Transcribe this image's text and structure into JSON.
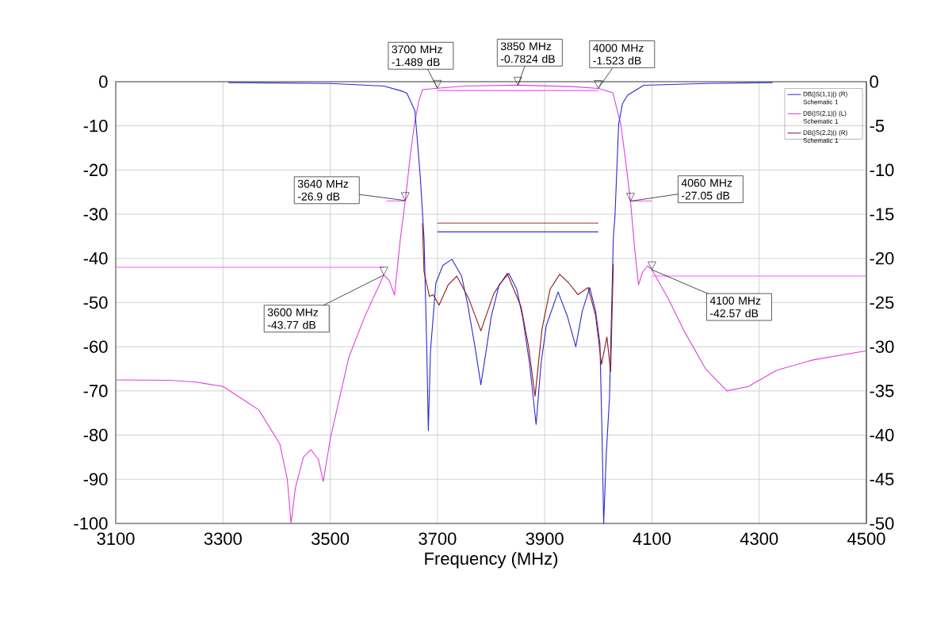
{
  "chart_data": {
    "type": "line",
    "xlabel": "Frequency (MHz)",
    "xlim": [
      3100,
      4500
    ],
    "xticks": [
      3100,
      3300,
      3500,
      3700,
      3900,
      4100,
      4300,
      4500
    ],
    "ylim": [
      -100,
      0
    ],
    "yticks": [
      0,
      -10,
      -20,
      -30,
      -40,
      -50,
      -60,
      -70,
      -80,
      -90,
      -100
    ],
    "y2lim": [
      -50,
      0
    ],
    "y2ticks": [
      0,
      -5,
      -10,
      -15,
      -20,
      -25,
      -30,
      -35,
      -40,
      -45,
      -50
    ],
    "grid": true,
    "legend": "top right",
    "series": [
      {
        "name": "DB(|S(1,1)|) (R) Schematic 1",
        "color": "#2a2ad0",
        "axis": "y2",
        "x": [
          3310,
          3500,
          3600,
          3630,
          3643,
          3658,
          3668,
          3675,
          3680,
          3683,
          3687,
          3697,
          3710,
          3727,
          3745,
          3756,
          3770,
          3781,
          3792,
          3800,
          3815,
          3833,
          3848,
          3859,
          3872,
          3884,
          3893,
          3903,
          3925,
          3942,
          3958,
          3970,
          3984,
          3995,
          4003,
          4007,
          4010,
          4015,
          4021,
          4028,
          4031,
          4038,
          4045,
          4055,
          4085,
          4200,
          4325
        ],
        "values": [
          -0.1,
          -0.2,
          -0.5,
          -1.0,
          -1.3,
          -3.3,
          -10.8,
          -17.7,
          -30,
          -39.5,
          -30.5,
          -22.8,
          -20.8,
          -20.1,
          -22,
          -25.1,
          -30,
          -34.3,
          -30,
          -26.7,
          -23,
          -21.7,
          -23.5,
          -26.7,
          -32,
          -38.8,
          -32,
          -27.6,
          -23.8,
          -26.5,
          -30.0,
          -26,
          -23.3,
          -26,
          -29.6,
          -40,
          -50,
          -42,
          -35.6,
          -17.7,
          -15.3,
          -4.8,
          -2.5,
          -1.5,
          -0.4,
          -0.2,
          -0.1
        ]
      },
      {
        "name": "DB(|S(2,1)|) (L) Schematic 1",
        "color": "#e040e0",
        "axis": "y",
        "x": [
          3100,
          3200,
          3250,
          3300,
          3367,
          3406,
          3420,
          3427,
          3435,
          3450,
          3464,
          3478,
          3487,
          3501,
          3535,
          3564,
          3600,
          3610,
          3620,
          3631,
          3640,
          3650,
          3657,
          3665,
          3672,
          3700,
          3750,
          3850,
          3950,
          4000,
          4027,
          4042,
          4050,
          4060,
          4068,
          4075,
          4083,
          4092,
          4100,
          4130,
          4160,
          4200,
          4240,
          4280,
          4333,
          4400,
          4500
        ],
        "values": [
          -67.5,
          -67.6,
          -68,
          -69,
          -74.3,
          -82,
          -90,
          -100,
          -92,
          -85,
          -83.3,
          -85.5,
          -90.5,
          -80.3,
          -62.3,
          -53.3,
          -43.77,
          -45,
          -48.3,
          -35.4,
          -26.9,
          -16,
          -9.7,
          -4.5,
          -1.8,
          -1.489,
          -1.0,
          -0.7824,
          -1.1,
          -1.523,
          -2.5,
          -9.7,
          -17,
          -27.05,
          -38,
          -46,
          -43,
          -41.7,
          -42.57,
          -49,
          -56.4,
          -65,
          -70,
          -69,
          -65.3,
          -63,
          -60.9
        ]
      },
      {
        "name": "DB(|S(2,2)|) (R) Schematic 1",
        "color": "#8b1a1a",
        "axis": "y2",
        "x": [
          3672,
          3675,
          3685,
          3692,
          3703,
          3720,
          3736,
          3758,
          3781,
          3805,
          3830,
          3856,
          3870,
          3882,
          3895,
          3910,
          3928,
          3945,
          3962,
          3981,
          3995,
          4006,
          4016,
          4023,
          4028
        ],
        "values": [
          -16,
          -21.5,
          -24.3,
          -24.1,
          -25.3,
          -23,
          -22.0,
          -24.5,
          -28.2,
          -24,
          -21.7,
          -25.5,
          -30,
          -35.6,
          -28,
          -23.5,
          -21.8,
          -22.8,
          -24.1,
          -23.3,
          -26.5,
          -32.0,
          -28.9,
          -32.8,
          -20.6
        ]
      },
      {
        "color": "#ff55ff",
        "axis": "y",
        "x": [
          3100,
          3600
        ],
        "values": [
          -42,
          -42
        ]
      },
      {
        "color": "#ff55ff",
        "axis": "y",
        "x": [
          3605,
          3640
        ],
        "values": [
          -27,
          -27
        ]
      },
      {
        "color": "#ff55ff",
        "axis": "y",
        "x": [
          3700,
          4000
        ],
        "values": [
          -2,
          -2
        ]
      },
      {
        "color": "#ff55ff",
        "axis": "y",
        "x": [
          4060,
          4100
        ],
        "values": [
          -27,
          -27
        ]
      },
      {
        "color": "#ff55ff",
        "axis": "y",
        "x": [
          4100,
          4500
        ],
        "values": [
          -44,
          -44
        ]
      },
      {
        "color": "#3333cc",
        "axis": "y2",
        "x": [
          3700,
          4000
        ],
        "values": [
          -17,
          -17
        ]
      },
      {
        "color": "#993333",
        "axis": "y2",
        "x": [
          3700,
          4000
        ],
        "values": [
          -16,
          -16
        ]
      }
    ],
    "annotations": [
      {
        "text": "3700 MHz -1.489 dB",
        "x": 3700,
        "y": -1.489
      },
      {
        "text": "3850 MHz -0.7824 dB",
        "x": 3850,
        "y": -0.7824
      },
      {
        "text": "4000 MHz -1.523 dB",
        "x": 4000,
        "y": -1.523
      },
      {
        "text": "3640 MHz -26.9 dB",
        "x": 3640,
        "y": -26.9
      },
      {
        "text": "4060 MHz -27.05 dB",
        "x": 4060,
        "y": -27.05
      },
      {
        "text": "3600 MHz -43.77 dB",
        "x": 3600,
        "y": -43.77
      },
      {
        "text": "4100 MHz -42.57 dB",
        "x": 4100,
        "y": -42.57
      }
    ]
  }
}
